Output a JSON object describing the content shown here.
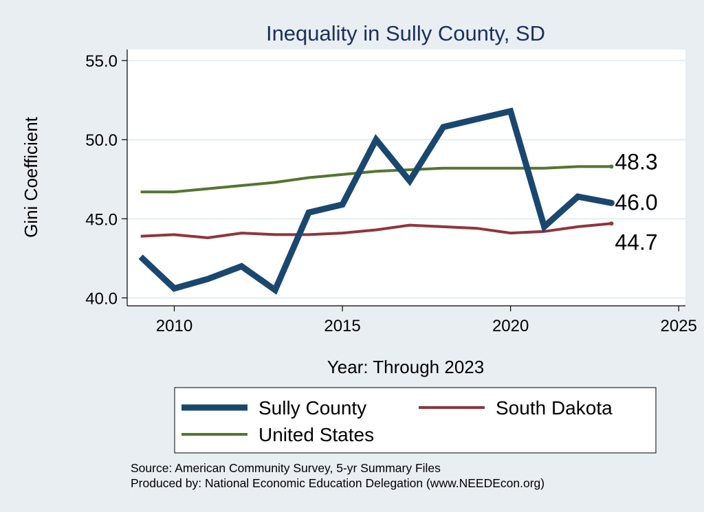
{
  "chart_data": {
    "type": "line",
    "title": "Inequality in Sully County, SD",
    "xlabel": "Year: Through 2023",
    "ylabel": "Gini Coefficient",
    "xlim": [
      2008.6,
      2025.2
    ],
    "ylim": [
      39.5,
      55.7
    ],
    "xticks": [
      2010,
      2015,
      2020,
      2025
    ],
    "xtick_labels": [
      "2010",
      "2015",
      "2020",
      "2025"
    ],
    "yticks": [
      40,
      45,
      50,
      55
    ],
    "ytick_labels": [
      "40.0",
      "45.0",
      "50.0",
      "55.0"
    ],
    "grid": true,
    "x": [
      2009,
      2010,
      2011,
      2012,
      2013,
      2014,
      2015,
      2016,
      2017,
      2018,
      2019,
      2020,
      2021,
      2022,
      2023
    ],
    "series": [
      {
        "name": "Sully County",
        "color": "#1a476f",
        "width": 9,
        "values": [
          42.6,
          40.6,
          41.2,
          42.0,
          40.5,
          45.4,
          45.9,
          50.0,
          47.4,
          50.8,
          51.3,
          51.8,
          44.5,
          46.4,
          46.0
        ],
        "end_label": "46.0"
      },
      {
        "name": "South Dakota",
        "color": "#90353b",
        "width": 4,
        "values": [
          43.9,
          44.0,
          43.8,
          44.1,
          44.0,
          44.0,
          44.1,
          44.3,
          44.6,
          44.5,
          44.4,
          44.1,
          44.2,
          44.5,
          44.7
        ],
        "end_label": "44.7"
      },
      {
        "name": "United States",
        "color": "#55752f",
        "width": 4,
        "values": [
          46.7,
          46.7,
          46.9,
          47.1,
          47.3,
          47.6,
          47.8,
          48.0,
          48.1,
          48.2,
          48.2,
          48.2,
          48.2,
          48.3,
          48.3
        ],
        "end_label": "48.3"
      }
    ],
    "legend": {
      "position": "bottom",
      "items": [
        "Sully County",
        "South Dakota",
        "United States"
      ]
    },
    "notes": [
      "Source: American Community Survey, 5-yr Summary Files",
      "Produced by: National Economic Education Delegation (www.NEEDEcon.org)"
    ]
  },
  "colors": {
    "background": "#e9eef3",
    "plot_background": "#ffffff",
    "grid": "#e6eef2",
    "title": "#1a2f5a"
  }
}
